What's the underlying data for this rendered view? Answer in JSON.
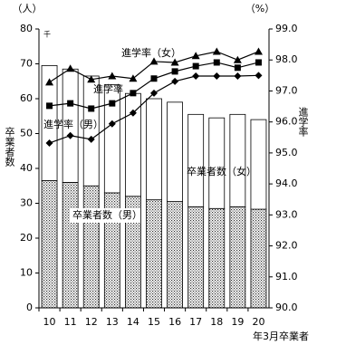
{
  "chart_data": {
    "type": "bar-line",
    "ylabel": "卒業者数",
    "y2label": "進学率",
    "y_unit": "（人）",
    "y_unit_scale": "千",
    "y2_unit": "（%）",
    "xlabel": "年3月卒業者",
    "categories": [
      "10",
      "11",
      "12",
      "13",
      "14",
      "15",
      "16",
      "17",
      "18",
      "19",
      "20"
    ],
    "ylim": [
      0,
      80
    ],
    "yticks": [
      0,
      10,
      20,
      30,
      40,
      50,
      60,
      70,
      80
    ],
    "y2lim": [
      90,
      99
    ],
    "y2ticks": [
      {
        "value": 90,
        "label": "90.0"
      },
      {
        "value": 91,
        "label": "91.0"
      },
      {
        "value": 92,
        "label": "92.0"
      },
      {
        "value": 93,
        "label": "93.0"
      },
      {
        "value": 94,
        "label": "94.0"
      },
      {
        "value": 95,
        "label": "95.0"
      },
      {
        "value": 96,
        "label": "96.0"
      },
      {
        "value": 97,
        "label": "97.0"
      },
      {
        "value": 98,
        "label": "98.0"
      },
      {
        "value": 99,
        "label": "99.0"
      }
    ],
    "series": [
      {
        "name": "卒業者数（男）",
        "kind": "bar",
        "color": "#999999",
        "values": [
          36.5,
          36,
          35,
          33,
          32,
          31,
          30.5,
          29,
          28.5,
          29,
          28.3
        ]
      },
      {
        "name": "卒業者数（女）",
        "kind": "bar",
        "color": "#ffffff",
        "values": [
          33,
          32.5,
          31.5,
          31,
          29.5,
          29,
          28.5,
          26.5,
          26,
          26.5,
          25.7
        ]
      },
      {
        "name": "進学率（女）",
        "kind": "line",
        "marker": "triangle",
        "axis": "y2",
        "color": "#000000",
        "values": [
          97.28,
          97.72,
          97.37,
          97.48,
          97.4,
          97.95,
          97.92,
          98.13,
          98.27,
          98.0,
          98.27
        ]
      },
      {
        "name": "進学率",
        "kind": "line",
        "marker": "square",
        "axis": "y2",
        "color": "#000000",
        "values": [
          96.52,
          96.6,
          96.43,
          96.6,
          96.93,
          97.4,
          97.63,
          97.8,
          97.92,
          97.75,
          97.92
        ]
      },
      {
        "name": "進学率（男）",
        "kind": "line",
        "marker": "diamond",
        "axis": "y2",
        "color": "#000000",
        "values": [
          95.32,
          95.56,
          95.44,
          95.94,
          96.29,
          96.93,
          97.31,
          97.48,
          97.48,
          97.48,
          97.5
        ]
      }
    ]
  }
}
